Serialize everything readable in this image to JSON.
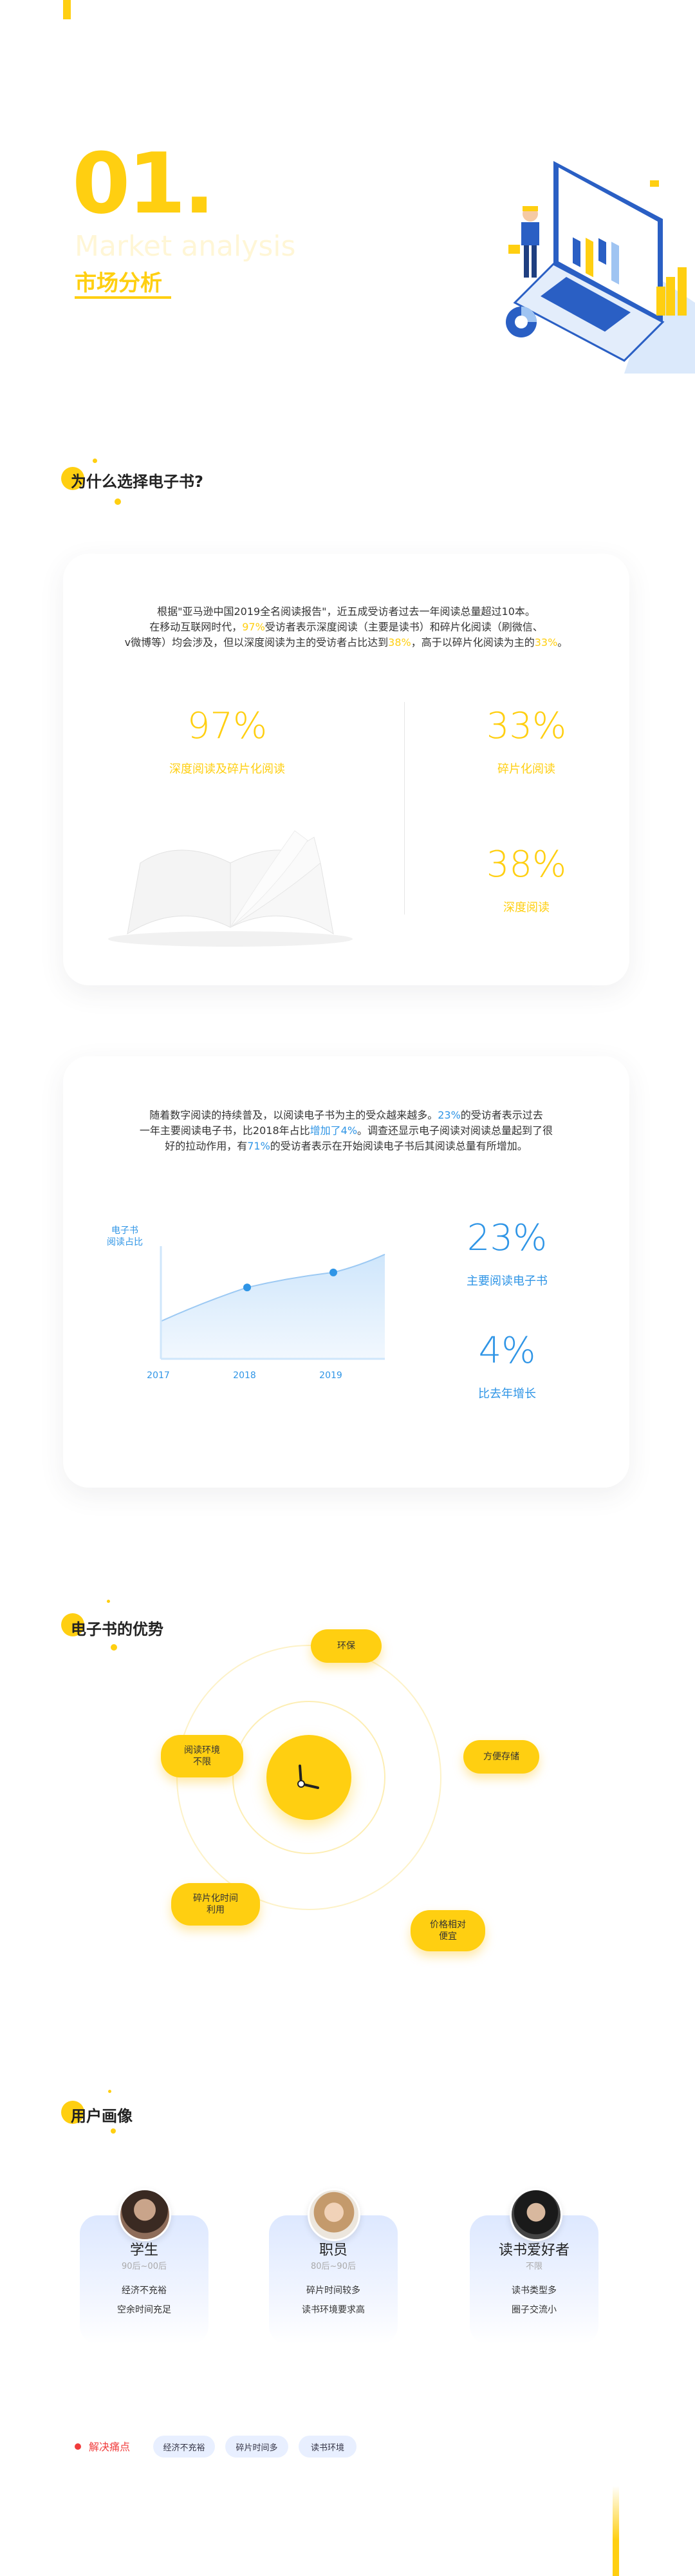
{
  "colors": {
    "accent": "#ffcf11",
    "blue": "#2f95e6",
    "red": "#f03c3c"
  },
  "hero": {
    "number": "01.",
    "subtitle_en": "Market analysis",
    "title_cn": "市场分析"
  },
  "section1": {
    "title": "为什么选择电子书?",
    "para_line1": "根据\"亚马逊中国2019全名阅读报告\"，近五成受访者过去一年阅读总量超过10本。",
    "para_line2_a": "在移动互联网时代，",
    "para_line2_hl": "97%",
    "para_line2_b": "受访者表示深度阅读（主要是读书）和碎片化阅读（刷微信、",
    "para_line3_a": "v微博等）均会涉及，但以深度阅读为主的受访者占比达到",
    "para_line3_hl1": "38%",
    "para_line3_b": "，高于以碎片化阅读为主的",
    "para_line3_hl2": "33%",
    "para_line3_c": "。",
    "stat1_value": "97%",
    "stat1_label": "深度阅读及碎片化阅读",
    "stat2_value": "33%",
    "stat2_label": "碎片化阅读",
    "stat3_value": "38%",
    "stat3_label": "深度阅读"
  },
  "section2": {
    "para_line1_a": "随着数字阅读的持续普及，以阅读电子书为主的受众越来越多。",
    "para_line1_hl": "23%",
    "para_line1_b": "的受访者表示过去",
    "para_line2_a": "一年主要阅读电子书，比2018年占比",
    "para_line2_hl": "增加了4%",
    "para_line2_b": "。调查还显示电子阅读对阅读总量起到了很",
    "para_line3_a": "好的拉动作用，有",
    "para_line3_hl": "71%",
    "para_line3_b": "的受访者表示在开始阅读电子书后其阅读总量有所增加。",
    "stat1_value": "23%",
    "stat1_label": "主要阅读电子书",
    "stat2_value": "4%",
    "stat2_label": "比去年增长"
  },
  "chart_data": {
    "type": "area",
    "ylabel": "电子书\n阅读占比",
    "categories": [
      "2017",
      "2018",
      "2019"
    ],
    "x_labels": [
      "2017",
      "2018",
      "2019"
    ],
    "series": [
      {
        "values": [
          10,
          19,
          23
        ]
      }
    ],
    "marked_points": [
      "2018",
      "2019"
    ]
  },
  "section3": {
    "title": "电子书的优势",
    "center_icon": "clock-icon",
    "items": [
      "环保",
      "方便存储",
      "价格相对\n便宜",
      "碎片化时间\n利用",
      "阅读环境\n不限"
    ]
  },
  "section4": {
    "title": "用户画像",
    "personas": [
      {
        "name": "学生",
        "age": "90后~00后",
        "line1": "经济不充裕",
        "line2": "空余时间充足"
      },
      {
        "name": "职员",
        "age": "80后~90后",
        "line1": "碎片时间较多",
        "line2": "读书环境要求高"
      },
      {
        "name": "读书爱好者",
        "age": "不限",
        "line1": "读书类型多",
        "line2": "圈子交流小"
      }
    ],
    "pain_label": "解决痛点",
    "tags": [
      "经济不充裕",
      "碎片时间多",
      "读书环境"
    ]
  }
}
